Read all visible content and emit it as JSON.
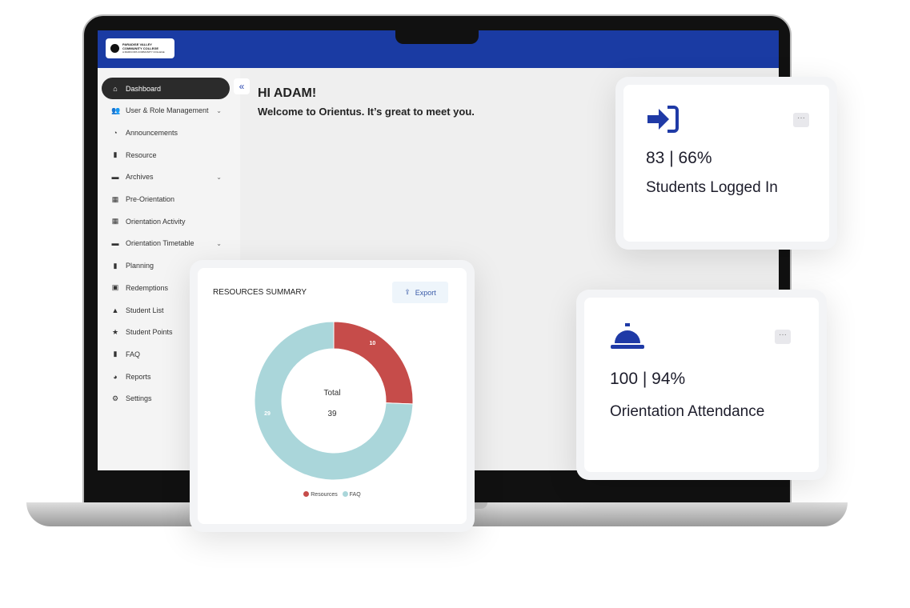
{
  "logo": {
    "line1": "PARADISE VALLEY",
    "line2": "COMMUNITY COLLEGE",
    "line3": "A MARICOPA COMMUNITY COLLEGE"
  },
  "sidebar": {
    "items": [
      {
        "label": "Dashboard",
        "icon": "home-icon",
        "glyph": "⌂",
        "active": true
      },
      {
        "label": "User & Role Management",
        "icon": "users-icon",
        "glyph": "👥",
        "chevron": true
      },
      {
        "label": "Announcements",
        "icon": "rss-icon",
        "glyph": "◔"
      },
      {
        "label": "Resource",
        "icon": "file-icon",
        "glyph": "▮"
      },
      {
        "label": "Archives",
        "icon": "archive-icon",
        "glyph": "▬",
        "chevron": true
      },
      {
        "label": "Pre-Orientation",
        "icon": "calendar-icon",
        "glyph": "▦"
      },
      {
        "label": "Orientation Activity",
        "icon": "calendar-icon",
        "glyph": "▦"
      },
      {
        "label": "Orientation Timetable",
        "icon": "archive-icon",
        "glyph": "▬",
        "chevron": true
      },
      {
        "label": "Planning",
        "icon": "file-icon",
        "glyph": "▮"
      },
      {
        "label": "Redemptions",
        "icon": "gift-icon",
        "glyph": "▣"
      },
      {
        "label": "Student List",
        "icon": "graduation-cap-icon",
        "glyph": "▲"
      },
      {
        "label": "Student Points",
        "icon": "star-icon",
        "glyph": "★"
      },
      {
        "label": "FAQ",
        "icon": "file-icon",
        "glyph": "▮"
      },
      {
        "label": "Reports",
        "icon": "pie-chart-icon",
        "glyph": "◕"
      },
      {
        "label": "Settings",
        "icon": "gear-icon",
        "glyph": "⚙"
      }
    ]
  },
  "main": {
    "greeting": "HI ADAM!",
    "welcome": "Welcome to Orientus. It’s great to meet you."
  },
  "students_card": {
    "stat": "83 | 66%",
    "label": "Students Logged In",
    "icon": "sign-in-icon"
  },
  "attendance_card": {
    "stat": "100 | 94%",
    "label": "Orientation Attendance",
    "icon": "service-bell-icon"
  },
  "resources_card": {
    "title": "RESOURCES SUMMARY",
    "export_label": "Export"
  },
  "chart_data": {
    "type": "pie",
    "donut": true,
    "center_label": "Total",
    "center_value": "39",
    "categories": [
      "Resources",
      "FAQ"
    ],
    "values": [
      10,
      29
    ],
    "data_labels": [
      "10",
      "29"
    ],
    "colors": [
      "#c64c4a",
      "#aad6da"
    ],
    "legend": "bottom"
  },
  "colors": {
    "header": "#1a3ba3",
    "accent": "#1f3aa6"
  }
}
